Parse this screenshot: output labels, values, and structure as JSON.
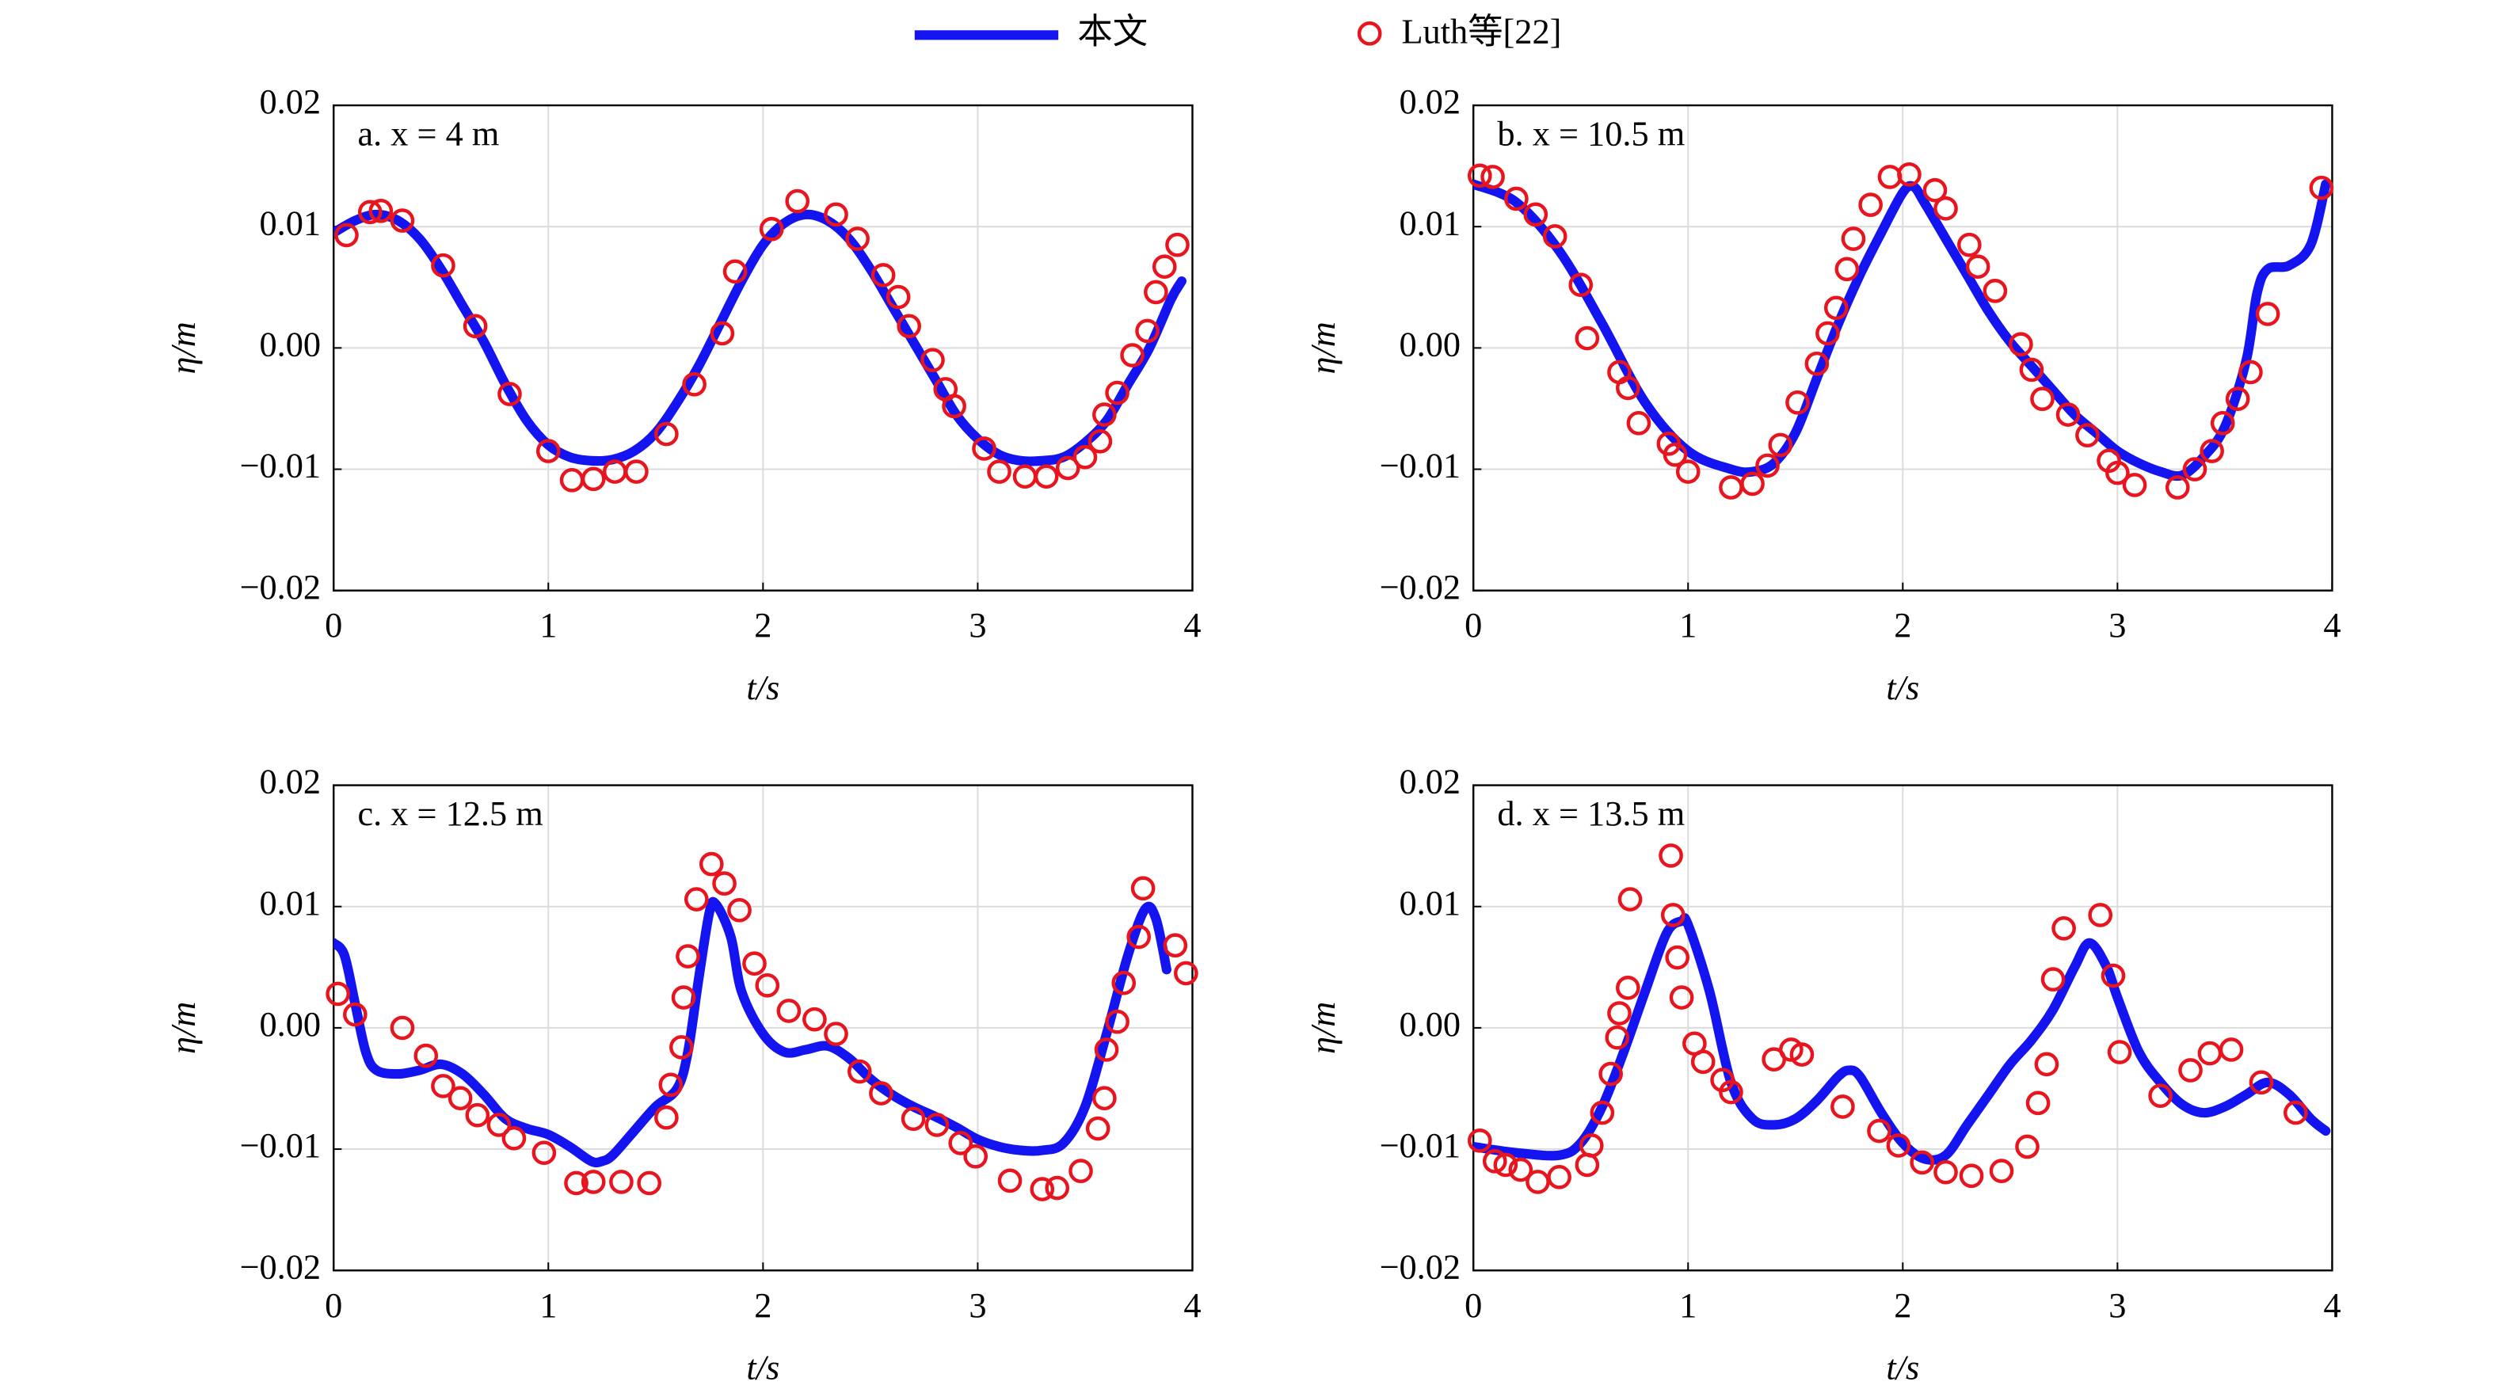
{
  "chart_data": [
    {
      "type": "line",
      "annotation": "a. x = 4 m",
      "xlabel": "t/s",
      "ylabel": "η/m",
      "legend_position": "top",
      "grid": true,
      "xlim": [
        0,
        4
      ],
      "xticks": [
        0,
        1,
        2,
        3,
        4
      ],
      "ylim": [
        -0.02,
        0.02
      ],
      "yticks": [
        {
          "value": -0.02,
          "label": "−0.02"
        },
        {
          "value": -0.01,
          "label": "−0.01"
        },
        {
          "value": 0,
          "label": "0.00"
        },
        {
          "value": 0.01,
          "label": "0.01"
        },
        {
          "value": 0.02,
          "label": "0.02"
        }
      ],
      "series": [
        {
          "name": "本文",
          "type": "line",
          "color": "#1414f0",
          "x": [
            0,
            0.1,
            0.2,
            0.3,
            0.4,
            0.5,
            0.6,
            0.7,
            0.8,
            0.9,
            1.0,
            1.1,
            1.2,
            1.3,
            1.4,
            1.5,
            1.6,
            1.7,
            1.8,
            1.9,
            2.0,
            2.1,
            2.2,
            2.3,
            2.4,
            2.5,
            2.6,
            2.7,
            2.8,
            2.9,
            3.0,
            3.1,
            3.2,
            3.3,
            3.4,
            3.5,
            3.6,
            3.7,
            3.8,
            3.9,
            3.95
          ],
          "values": [
            0.0095,
            0.0105,
            0.011,
            0.0105,
            0.009,
            0.0065,
            0.0035,
            0.0005,
            -0.003,
            -0.006,
            -0.008,
            -0.009,
            -0.0093,
            -0.0092,
            -0.0085,
            -0.007,
            -0.0045,
            -0.0015,
            0.002,
            0.0055,
            0.0085,
            0.0103,
            0.011,
            0.0105,
            0.009,
            0.0065,
            0.0035,
            0.0005,
            -0.0025,
            -0.0055,
            -0.0075,
            -0.0088,
            -0.0093,
            -0.0093,
            -0.009,
            -0.0078,
            -0.006,
            -0.003,
            0.0,
            0.004,
            0.0055
          ]
        },
        {
          "name": "Luth等[22]",
          "type": "scatter",
          "color": "#e8141e",
          "x": [
            0.06,
            0.17,
            0.22,
            0.32,
            0.51,
            0.66,
            0.82,
            1.0,
            1.11,
            1.21,
            1.31,
            1.41,
            1.55,
            1.68,
            1.81,
            1.87,
            2.04,
            2.16,
            2.34,
            2.44,
            2.56,
            2.63,
            2.68,
            2.79,
            2.85,
            2.89,
            3.03,
            3.1,
            3.22,
            3.32,
            3.42,
            3.5,
            3.57,
            3.59,
            3.65,
            3.72,
            3.79,
            3.83,
            3.87,
            3.93
          ],
          "values": [
            0.0093,
            0.0112,
            0.0113,
            0.0105,
            0.0068,
            0.0018,
            -0.0038,
            -0.0085,
            -0.0109,
            -0.0108,
            -0.0102,
            -0.0102,
            -0.0071,
            -0.003,
            0.0012,
            0.0063,
            0.0098,
            0.0121,
            0.011,
            0.009,
            0.006,
            0.0042,
            0.0018,
            -0.001,
            -0.0034,
            -0.0048,
            -0.0083,
            -0.0102,
            -0.0106,
            -0.0106,
            -0.0099,
            -0.009,
            -0.0077,
            -0.0055,
            -0.0037,
            -0.0006,
            0.0014,
            0.0046,
            0.0067,
            0.0085
          ]
        }
      ]
    },
    {
      "type": "line",
      "annotation": "b. x = 10.5 m",
      "xlabel": "t/s",
      "ylabel": "η/m",
      "grid": true,
      "xlim": [
        0,
        4
      ],
      "xticks": [
        0,
        1,
        2,
        3,
        4
      ],
      "ylim": [
        -0.02,
        0.02
      ],
      "yticks": [
        {
          "value": -0.02,
          "label": "−0.02"
        },
        {
          "value": -0.01,
          "label": "−0.01"
        },
        {
          "value": 0,
          "label": "0.00"
        },
        {
          "value": 0.01,
          "label": "0.01"
        },
        {
          "value": 0.02,
          "label": "0.02"
        }
      ],
      "series": [
        {
          "type": "line",
          "color": "#1414f0",
          "x": [
            0,
            0.2,
            0.4,
            0.6,
            0.8,
            1.0,
            1.2,
            1.3,
            1.4,
            1.5,
            1.6,
            1.7,
            1.8,
            1.9,
            2.0,
            2.05,
            2.1,
            2.2,
            2.3,
            2.4,
            2.5,
            2.6,
            2.7,
            2.8,
            2.9,
            3.0,
            3.1,
            3.2,
            3.3,
            3.4,
            3.5,
            3.6,
            3.65,
            3.7,
            3.8,
            3.9,
            3.97
          ],
          "values": [
            0.0135,
            0.012,
            0.008,
            0.002,
            -0.0045,
            -0.0085,
            -0.01,
            -0.0102,
            -0.0095,
            -0.007,
            -0.0025,
            0.002,
            0.006,
            0.0095,
            0.0128,
            0.0133,
            0.012,
            0.009,
            0.006,
            0.003,
            0.0005,
            -0.0015,
            -0.0035,
            -0.0055,
            -0.007,
            -0.0085,
            -0.0095,
            -0.0102,
            -0.0105,
            -0.009,
            -0.0065,
            -0.001,
            0.0045,
            0.0065,
            0.0068,
            0.0085,
            0.0135
          ]
        },
        {
          "type": "scatter",
          "color": "#e8141e",
          "x": [
            0.03,
            0.09,
            0.2,
            0.29,
            0.38,
            0.5,
            0.53,
            0.68,
            0.72,
            0.77,
            0.91,
            0.94,
            1.0,
            1.2,
            1.3,
            1.37,
            1.43,
            1.51,
            1.6,
            1.65,
            1.69,
            1.74,
            1.77,
            1.85,
            1.94,
            2.03,
            2.15,
            2.2,
            2.31,
            2.35,
            2.43,
            2.55,
            2.6,
            2.65,
            2.77,
            2.86,
            2.96,
            3.0,
            3.08,
            3.28,
            3.36,
            3.44,
            3.49,
            3.56,
            3.62,
            3.7,
            3.95
          ],
          "values": [
            0.0142,
            0.0141,
            0.0123,
            0.011,
            0.0092,
            0.0052,
            0.0008,
            -0.002,
            -0.0033,
            -0.0062,
            -0.0079,
            -0.0088,
            -0.0102,
            -0.0115,
            -0.0112,
            -0.0097,
            -0.008,
            -0.0045,
            -0.0013,
            0.0012,
            0.0033,
            0.0065,
            0.009,
            0.0118,
            0.0141,
            0.0143,
            0.013,
            0.0115,
            0.0085,
            0.0067,
            0.0047,
            0.0003,
            -0.0018,
            -0.0042,
            -0.0055,
            -0.0072,
            -0.0093,
            -0.0103,
            -0.0113,
            -0.0115,
            -0.01,
            -0.0085,
            -0.0062,
            -0.0042,
            -0.002,
            0.0028,
            0.0132
          ]
        }
      ]
    },
    {
      "type": "line",
      "annotation": "c. x = 12.5 m",
      "xlabel": "t/s",
      "ylabel": "η/m",
      "grid": true,
      "xlim": [
        0,
        4
      ],
      "xticks": [
        0,
        1,
        2,
        3,
        4
      ],
      "ylim": [
        -0.02,
        0.02
      ],
      "yticks": [
        {
          "value": -0.02,
          "label": "−0.02"
        },
        {
          "value": -0.01,
          "label": "−0.01"
        },
        {
          "value": 0,
          "label": "0.00"
        },
        {
          "value": 0.01,
          "label": "0.01"
        },
        {
          "value": 0.02,
          "label": "0.02"
        }
      ],
      "series": [
        {
          "type": "line",
          "color": "#1414f0",
          "x": [
            0,
            0.05,
            0.1,
            0.15,
            0.2,
            0.3,
            0.4,
            0.5,
            0.6,
            0.7,
            0.8,
            0.9,
            1.0,
            1.1,
            1.2,
            1.25,
            1.3,
            1.4,
            1.5,
            1.6,
            1.65,
            1.7,
            1.75,
            1.78,
            1.85,
            1.9,
            2.0,
            2.1,
            2.2,
            2.3,
            2.4,
            2.5,
            2.6,
            2.7,
            2.8,
            2.9,
            3.0,
            3.1,
            3.2,
            3.3,
            3.4,
            3.5,
            3.6,
            3.7,
            3.78,
            3.83,
            3.88
          ],
          "values": [
            0.007,
            0.006,
            0.002,
            -0.002,
            -0.0035,
            -0.0038,
            -0.0035,
            -0.003,
            -0.0038,
            -0.0055,
            -0.0075,
            -0.0083,
            -0.0088,
            -0.0098,
            -0.011,
            -0.011,
            -0.0105,
            -0.0085,
            -0.0065,
            -0.005,
            -0.002,
            0.004,
            0.0095,
            0.0102,
            0.0075,
            0.003,
            -0.0005,
            -0.002,
            -0.0018,
            -0.0015,
            -0.0025,
            -0.0042,
            -0.0055,
            -0.0065,
            -0.0073,
            -0.0082,
            -0.0092,
            -0.0098,
            -0.0101,
            -0.0101,
            -0.0095,
            -0.0065,
            -0.0005,
            0.006,
            0.0098,
            0.009,
            0.0048
          ]
        },
        {
          "type": "scatter",
          "color": "#e8141e",
          "x": [
            0.02,
            0.1,
            0.32,
            0.43,
            0.51,
            0.59,
            0.67,
            0.77,
            0.84,
            0.98,
            1.13,
            1.21,
            1.34,
            1.47,
            1.55,
            1.57,
            1.62,
            1.63,
            1.65,
            1.69,
            1.76,
            1.82,
            1.89,
            1.96,
            2.02,
            2.12,
            2.24,
            2.34,
            2.45,
            2.55,
            2.7,
            2.81,
            2.92,
            2.99,
            3.15,
            3.3,
            3.37,
            3.48,
            3.56,
            3.59,
            3.6,
            3.65,
            3.68,
            3.75,
            3.77,
            3.92,
            3.97
          ],
          "values": [
            0.0028,
            0.0011,
            0.0,
            -0.0023,
            -0.0048,
            -0.0058,
            -0.0072,
            -0.008,
            -0.0091,
            -0.0103,
            -0.0128,
            -0.0127,
            -0.0127,
            -0.0128,
            -0.0074,
            -0.0047,
            -0.0016,
            0.0025,
            0.0059,
            0.0106,
            0.0135,
            0.0119,
            0.0097,
            0.0053,
            0.0035,
            0.0014,
            0.0007,
            -0.0005,
            -0.0036,
            -0.0054,
            -0.0075,
            -0.008,
            -0.0095,
            -0.0106,
            -0.0126,
            -0.0133,
            -0.0132,
            -0.0118,
            -0.0083,
            -0.0058,
            -0.0018,
            0.0005,
            0.0037,
            0.0075,
            0.0115,
            0.0068,
            0.0045
          ]
        }
      ]
    },
    {
      "type": "line",
      "annotation": "d. x = 13.5 m",
      "xlabel": "t/s",
      "ylabel": "η/m",
      "grid": true,
      "xlim": [
        0,
        4
      ],
      "xticks": [
        0,
        1,
        2,
        3,
        4
      ],
      "ylim": [
        -0.02,
        0.02
      ],
      "yticks": [
        {
          "value": -0.02,
          "label": "−0.02"
        },
        {
          "value": -0.01,
          "label": "−0.01"
        },
        {
          "value": 0,
          "label": "0.00"
        },
        {
          "value": 0.01,
          "label": "0.01"
        },
        {
          "value": 0.02,
          "label": "0.02"
        }
      ],
      "series": [
        {
          "type": "line",
          "color": "#1414f0",
          "x": [
            0,
            0.2,
            0.4,
            0.5,
            0.6,
            0.7,
            0.8,
            0.9,
            0.97,
            1.0,
            1.1,
            1.2,
            1.3,
            1.4,
            1.5,
            1.6,
            1.7,
            1.75,
            1.8,
            1.9,
            2.0,
            2.1,
            2.2,
            2.3,
            2.4,
            2.5,
            2.6,
            2.7,
            2.8,
            2.87,
            2.95,
            3.0,
            3.1,
            3.2,
            3.3,
            3.4,
            3.5,
            3.6,
            3.7,
            3.8,
            3.9,
            3.97
          ],
          "values": [
            -0.0098,
            -0.0103,
            -0.0105,
            -0.0095,
            -0.0065,
            -0.002,
            0.003,
            0.0078,
            0.0088,
            0.0085,
            0.003,
            -0.0045,
            -0.0075,
            -0.008,
            -0.0075,
            -0.006,
            -0.004,
            -0.0035,
            -0.004,
            -0.007,
            -0.0095,
            -0.0108,
            -0.0105,
            -0.008,
            -0.0055,
            -0.003,
            -0.001,
            0.0015,
            0.005,
            0.007,
            0.005,
            0.0025,
            -0.002,
            -0.0045,
            -0.0063,
            -0.007,
            -0.0065,
            -0.0055,
            -0.0045,
            -0.0055,
            -0.0075,
            -0.0085
          ]
        },
        {
          "type": "scatter",
          "color": "#e8141e",
          "x": [
            0.03,
            0.1,
            0.15,
            0.22,
            0.3,
            0.4,
            0.53,
            0.55,
            0.6,
            0.64,
            0.67,
            0.68,
            0.72,
            0.73,
            0.92,
            0.93,
            0.95,
            0.97,
            1.03,
            1.07,
            1.16,
            1.2,
            1.4,
            1.48,
            1.53,
            1.72,
            1.89,
            1.98,
            2.09,
            2.2,
            2.32,
            2.46,
            2.58,
            2.63,
            2.67,
            2.7,
            2.75,
            2.92,
            2.98,
            3.01,
            3.2,
            3.34,
            3.43,
            3.53,
            3.67,
            3.83
          ],
          "values": [
            -0.0093,
            -0.011,
            -0.0113,
            -0.0117,
            -0.0127,
            -0.0123,
            -0.0113,
            -0.0097,
            -0.007,
            -0.0038,
            -0.0008,
            0.0012,
            0.0033,
            0.0106,
            0.0142,
            0.0093,
            0.0058,
            0.0025,
            -0.0013,
            -0.0028,
            -0.0043,
            -0.0053,
            -0.0026,
            -0.0018,
            -0.0022,
            -0.0065,
            -0.0085,
            -0.0097,
            -0.0111,
            -0.0119,
            -0.0122,
            -0.0118,
            -0.0098,
            -0.0062,
            -0.003,
            0.004,
            0.0082,
            0.0093,
            0.0043,
            -0.002,
            -0.0056,
            -0.0035,
            -0.0021,
            -0.0018,
            -0.0045,
            -0.007
          ]
        }
      ]
    }
  ]
}
